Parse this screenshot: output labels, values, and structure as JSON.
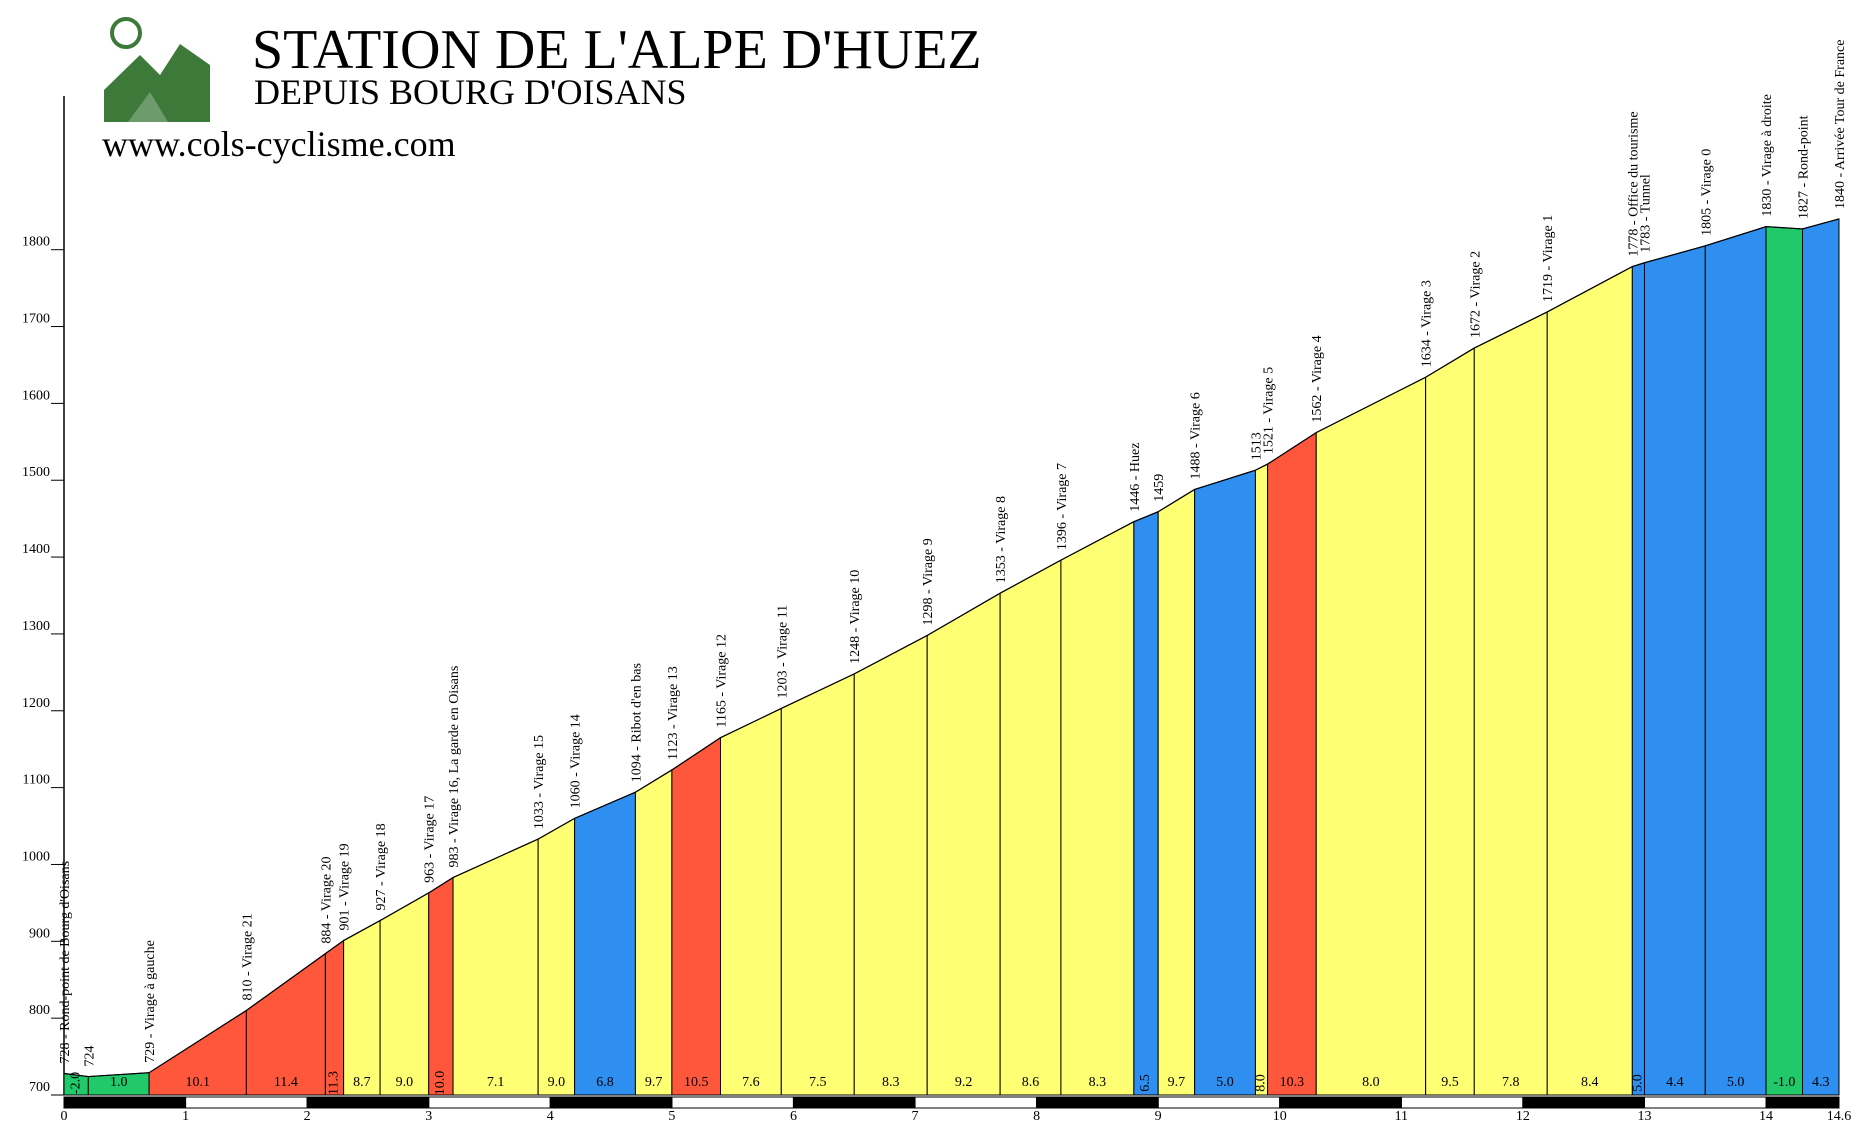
{
  "chart_data": {
    "type": "profile",
    "title": "STATION DE L'ALPE D'HUEZ",
    "subtitle": "DEPUIS BOURG D'OISANS",
    "source": "www.cols-cyclisme.com",
    "x": [
      0,
      0.2,
      0.7,
      1.5,
      2.15,
      2.3,
      2.6,
      3.0,
      3.2,
      3.9,
      4.2,
      4.7,
      5.0,
      5.4,
      5.9,
      6.5,
      7.1,
      7.7,
      8.2,
      8.8,
      9.0,
      9.3,
      9.8,
      9.9,
      10.3,
      11.2,
      11.6,
      12.2,
      12.9,
      13.0,
      13.5,
      14.0,
      14.3,
      14.6
    ],
    "values": [
      728,
      724,
      729,
      810,
      884,
      901,
      927,
      963,
      983,
      1033,
      1060,
      1094,
      1123,
      1165,
      1203,
      1248,
      1298,
      1353,
      1396,
      1446,
      1459,
      1488,
      1513,
      1521,
      1562,
      1634,
      1672,
      1719,
      1778,
      1783,
      1805,
      1830,
      1827,
      1840
    ],
    "point_labels": [
      "728 - Rond-point de Bourg d'Oisans",
      "724",
      "729 - Virage à gauche",
      "810 - Virage 21",
      "884 - Virage 20",
      "901 - Virage 19",
      "927 - Virage 18",
      "963 - Virage 17",
      "983 - Virage 16, La garde en Oisans",
      "1033 - Virage 15",
      "1060 - Virage 14",
      "1094 - Ribot d'en bas",
      "1123 - Virage 13",
      "1165 - Virage 12",
      "1203 - Virage 11",
      "1248 - Virage 10",
      "1298 - Virage 9",
      "1353 - Virage 8",
      "1396 - Virage 7",
      "1446 - Huez",
      "1459",
      "1488 - Virage 6",
      "1513",
      "1521 - Virage 5",
      "1562 - Virage 4",
      "1634 - Virage 3",
      "1672 - Virage 2",
      "1719 - Virage 1",
      "1778 - Office du tourisme",
      "1783 - Tunnel",
      "1805 - Virage 0",
      "1830 - Virage à droite",
      "1827 - Rond-point",
      "1840 - Arrivée Tour de France"
    ],
    "gradient_labels": [
      "-2.0",
      "1.0",
      "10.1",
      "11.4",
      "11.3",
      "8.7",
      "9.0",
      "10.0",
      "7.1",
      "9.0",
      "6.8",
      "9.7",
      "10.5",
      "7.6",
      "7.5",
      "8.3",
      "9.2",
      "8.6",
      "8.3",
      "6.5",
      "9.7",
      "5.0",
      "8.0",
      "10.3",
      "8.0",
      "9.5",
      "7.8",
      "8.4",
      "5.0",
      "4.4",
      "5.0",
      "-1.0",
      "4.3"
    ],
    "segment_colors": [
      "#22c96b",
      "#22c96b",
      "#ff573b",
      "#ff573b",
      "#ff573b",
      "#ffff73",
      "#ffff73",
      "#ff573b",
      "#ffff73",
      "#ffff73",
      "#2f8ff0",
      "#ffff73",
      "#ff573b",
      "#ffff73",
      "#ffff73",
      "#ffff73",
      "#ffff73",
      "#ffff73",
      "#ffff73",
      "#2f8ff0",
      "#ffff73",
      "#2f8ff0",
      "#ffff73",
      "#ff573b",
      "#ffff73",
      "#ffff73",
      "#ffff73",
      "#ffff73",
      "#2f8ff0",
      "#2f8ff0",
      "#2f8ff0",
      "#22c96b",
      "#2f8ff0"
    ],
    "xlim": [
      0,
      14.6
    ],
    "xticks": [
      0,
      1,
      2,
      3,
      4,
      5,
      6,
      7,
      8,
      9,
      10,
      11,
      12,
      13,
      14,
      14.6
    ],
    "ylim": [
      700,
      2000
    ],
    "yticks": [
      700,
      800,
      900,
      1000,
      1100,
      1200,
      1300,
      1400,
      1500,
      1600,
      1700,
      1800
    ]
  }
}
